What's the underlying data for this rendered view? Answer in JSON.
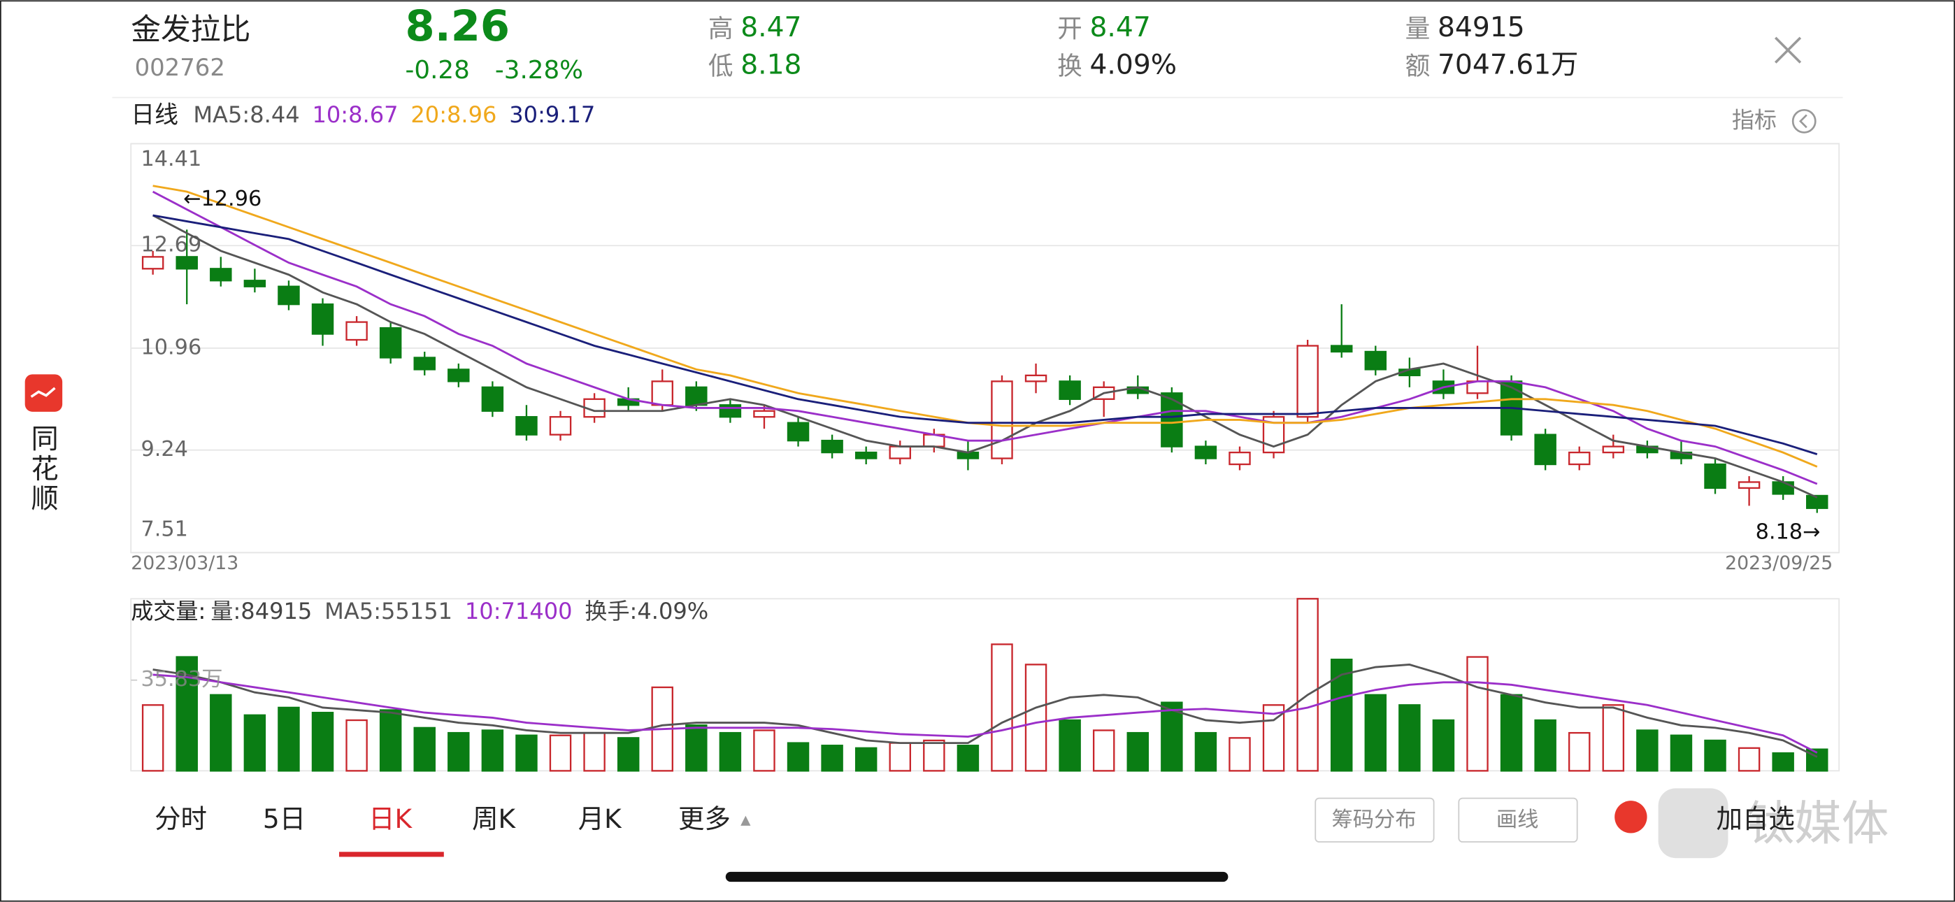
{
  "quote": {
    "name": "金发拉比",
    "code": "002762",
    "price": "8.26",
    "change": "-0.28",
    "change_pct": "-3.28%",
    "stats": [
      {
        "label": "高",
        "value": "8.47"
      },
      {
        "label": "低",
        "value": "8.18"
      },
      {
        "label": "开",
        "value": "8.47"
      },
      {
        "label": "换",
        "value": "4.09%"
      },
      {
        "label": "量",
        "value": "84915"
      },
      {
        "label": "额",
        "value": "7047.61万"
      }
    ]
  },
  "indicator_button": "指标",
  "side_label": "同花顺",
  "tabs": [
    "分时",
    "5日",
    "日K",
    "周K",
    "月K",
    "更多"
  ],
  "buttons": [
    "筹码分布",
    "画线",
    "加自选"
  ],
  "watermark": "钛媒体",
  "chart_data": [
    {
      "type": "candlestick",
      "title": "日线",
      "categories": [
        "2023/03/13",
        null,
        null,
        null,
        null,
        null,
        null,
        null,
        null,
        null,
        null,
        null,
        null,
        null,
        null,
        null,
        null,
        null,
        null,
        null,
        null,
        null,
        null,
        null,
        null,
        null,
        null,
        null,
        null,
        null,
        null,
        null,
        null,
        null,
        null,
        null,
        null,
        null,
        null,
        null,
        null,
        null,
        null,
        null,
        null,
        null,
        null,
        null,
        null,
        "2023/09/25"
      ],
      "open": [
        12.3,
        12.5,
        12.3,
        12.1,
        12.0,
        11.7,
        11.1,
        11.3,
        10.8,
        10.6,
        10.3,
        9.8,
        9.5,
        9.8,
        10.1,
        10.0,
        10.3,
        10.0,
        9.8,
        9.7,
        9.4,
        9.2,
        9.1,
        9.3,
        9.2,
        9.1,
        10.4,
        10.4,
        10.1,
        10.3,
        10.2,
        9.3,
        9.0,
        9.2,
        9.8,
        11.0,
        10.9,
        10.6,
        10.4,
        10.2,
        10.4,
        9.5,
        9.0,
        9.2,
        9.3,
        9.2,
        9.0,
        8.6,
        8.7,
        8.47
      ],
      "high": [
        12.6,
        12.96,
        12.5,
        12.3,
        12.1,
        11.8,
        11.5,
        11.4,
        10.9,
        10.7,
        10.4,
        10.0,
        9.9,
        10.2,
        10.3,
        10.6,
        10.4,
        10.1,
        10.0,
        9.8,
        9.5,
        9.3,
        9.4,
        9.6,
        9.4,
        10.5,
        10.7,
        10.5,
        10.4,
        10.5,
        10.3,
        9.4,
        9.3,
        9.9,
        11.1,
        11.7,
        11.0,
        10.8,
        10.6,
        11.0,
        10.5,
        9.6,
        9.3,
        9.5,
        9.4,
        9.4,
        9.1,
        8.8,
        8.8,
        8.47
      ],
      "low": [
        12.2,
        11.7,
        12.0,
        11.9,
        11.6,
        11.0,
        11.0,
        10.7,
        10.5,
        10.3,
        9.8,
        9.4,
        9.4,
        9.7,
        9.9,
        9.9,
        9.9,
        9.7,
        9.6,
        9.3,
        9.1,
        9.0,
        9.0,
        9.2,
        8.9,
        9.0,
        10.2,
        10.0,
        9.8,
        10.1,
        9.2,
        9.0,
        8.9,
        9.1,
        9.7,
        10.8,
        10.5,
        10.3,
        10.1,
        10.1,
        9.4,
        8.9,
        8.9,
        9.1,
        9.1,
        9.0,
        8.5,
        8.3,
        8.4,
        8.18
      ],
      "close": [
        12.5,
        12.3,
        12.1,
        12.0,
        11.7,
        11.2,
        11.4,
        10.8,
        10.6,
        10.4,
        9.9,
        9.5,
        9.8,
        10.1,
        10.0,
        10.4,
        10.0,
        9.8,
        9.9,
        9.4,
        9.2,
        9.1,
        9.3,
        9.5,
        9.1,
        10.4,
        10.5,
        10.1,
        10.3,
        10.2,
        9.3,
        9.1,
        9.2,
        9.8,
        11.0,
        10.9,
        10.6,
        10.5,
        10.2,
        10.4,
        9.5,
        9.0,
        9.2,
        9.3,
        9.2,
        9.1,
        8.6,
        8.7,
        8.5,
        8.26
      ],
      "up_color": "#c8262c",
      "down_color": "#0a7d14",
      "series": [
        {
          "name": "MA5:8.44",
          "color": "#555555",
          "values": [
            13.2,
            12.9,
            12.6,
            12.4,
            12.2,
            11.9,
            11.7,
            11.4,
            11.2,
            10.9,
            10.6,
            10.3,
            10.1,
            9.9,
            9.9,
            9.9,
            10.0,
            10.1,
            10.0,
            9.8,
            9.6,
            9.4,
            9.3,
            9.3,
            9.2,
            9.4,
            9.7,
            9.9,
            10.2,
            10.3,
            10.1,
            9.8,
            9.5,
            9.3,
            9.5,
            10.0,
            10.4,
            10.6,
            10.7,
            10.5,
            10.3,
            10.0,
            9.7,
            9.4,
            9.3,
            9.2,
            9.1,
            8.9,
            8.7,
            8.44
          ]
        },
        {
          "name": "10:8.67",
          "color": "#9b2fc9",
          "values": [
            13.6,
            13.3,
            13.0,
            12.7,
            12.4,
            12.2,
            12.0,
            11.7,
            11.5,
            11.2,
            11.0,
            10.7,
            10.5,
            10.3,
            10.1,
            10.0,
            9.95,
            9.95,
            9.95,
            9.9,
            9.8,
            9.7,
            9.6,
            9.5,
            9.4,
            9.4,
            9.5,
            9.6,
            9.7,
            9.8,
            9.9,
            9.9,
            9.8,
            9.7,
            9.7,
            9.8,
            9.95,
            10.1,
            10.3,
            10.4,
            10.4,
            10.3,
            10.1,
            9.9,
            9.6,
            9.4,
            9.3,
            9.1,
            8.9,
            8.67
          ]
        },
        {
          "name": "20:8.96",
          "color": "#f0a81c",
          "values": [
            13.7,
            13.6,
            13.4,
            13.2,
            13.0,
            12.8,
            12.6,
            12.4,
            12.2,
            12.0,
            11.8,
            11.6,
            11.4,
            11.2,
            11.0,
            10.8,
            10.6,
            10.5,
            10.35,
            10.2,
            10.1,
            10.0,
            9.9,
            9.8,
            9.7,
            9.65,
            9.65,
            9.65,
            9.7,
            9.7,
            9.7,
            9.75,
            9.75,
            9.7,
            9.7,
            9.75,
            9.85,
            9.95,
            10.0,
            10.05,
            10.1,
            10.1,
            10.05,
            10.0,
            9.9,
            9.75,
            9.6,
            9.4,
            9.2,
            8.96
          ]
        },
        {
          "name": "30:9.17",
          "color": "#1a1f7a",
          "values": [
            13.2,
            13.1,
            13.0,
            12.9,
            12.8,
            12.6,
            12.4,
            12.2,
            12.0,
            11.8,
            11.6,
            11.4,
            11.2,
            11.0,
            10.85,
            10.7,
            10.55,
            10.4,
            10.25,
            10.1,
            10.0,
            9.9,
            9.8,
            9.75,
            9.7,
            9.7,
            9.7,
            9.7,
            9.75,
            9.8,
            9.8,
            9.85,
            9.85,
            9.85,
            9.85,
            9.9,
            9.95,
            9.95,
            9.95,
            9.95,
            9.95,
            9.9,
            9.85,
            9.8,
            9.75,
            9.7,
            9.65,
            9.5,
            9.35,
            9.17
          ]
        }
      ],
      "ylim": [
        7.51,
        14.41
      ],
      "yticks": [
        7.51,
        9.24,
        10.96,
        12.69,
        14.41
      ],
      "grid": true,
      "annotations": [
        {
          "text": "←12.96"
        },
        {
          "text": "8.18→"
        }
      ]
    },
    {
      "type": "bar",
      "title": "成交量:",
      "series": [
        {
          "name": "量:84915",
          "style": "bar",
          "values": [
            260000,
            450000,
            300000,
            220000,
            250000,
            230000,
            200000,
            240000,
            170000,
            150000,
            160000,
            140000,
            140000,
            150000,
            130000,
            330000,
            180000,
            150000,
            160000,
            110000,
            100000,
            90000,
            110000,
            120000,
            100000,
            500000,
            420000,
            200000,
            160000,
            150000,
            270000,
            150000,
            130000,
            260000,
            680000,
            440000,
            300000,
            260000,
            200000,
            450000,
            300000,
            200000,
            150000,
            260000,
            160000,
            140000,
            120000,
            90000,
            70000,
            84915
          ]
        },
        {
          "name": "MA5:55151",
          "style": "line",
          "color": "#555555",
          "values": [
            400000,
            380000,
            350000,
            310000,
            290000,
            250000,
            240000,
            230000,
            210000,
            190000,
            180000,
            160000,
            150000,
            150000,
            150000,
            180000,
            190000,
            190000,
            190000,
            180000,
            150000,
            120000,
            110000,
            110000,
            110000,
            190000,
            250000,
            290000,
            300000,
            290000,
            240000,
            200000,
            190000,
            200000,
            300000,
            380000,
            410000,
            420000,
            380000,
            330000,
            300000,
            270000,
            250000,
            250000,
            210000,
            180000,
            170000,
            150000,
            120000,
            55151
          ]
        },
        {
          "name": "10:71400",
          "style": "line",
          "color": "#9b2fc9",
          "values": [
            380000,
            370000,
            350000,
            330000,
            310000,
            290000,
            270000,
            250000,
            230000,
            220000,
            210000,
            190000,
            180000,
            170000,
            160000,
            165000,
            170000,
            170000,
            170000,
            170000,
            165000,
            155000,
            145000,
            140000,
            135000,
            160000,
            190000,
            210000,
            220000,
            230000,
            240000,
            245000,
            235000,
            225000,
            250000,
            290000,
            320000,
            340000,
            350000,
            350000,
            340000,
            320000,
            300000,
            280000,
            260000,
            230000,
            200000,
            170000,
            140000,
            71400
          ]
        }
      ],
      "annotation": "换手:4.09%",
      "ylim": [
        0,
        680000
      ],
      "yticks": [
        {
          "value": 358300,
          "label": "35.83万"
        }
      ]
    }
  ]
}
